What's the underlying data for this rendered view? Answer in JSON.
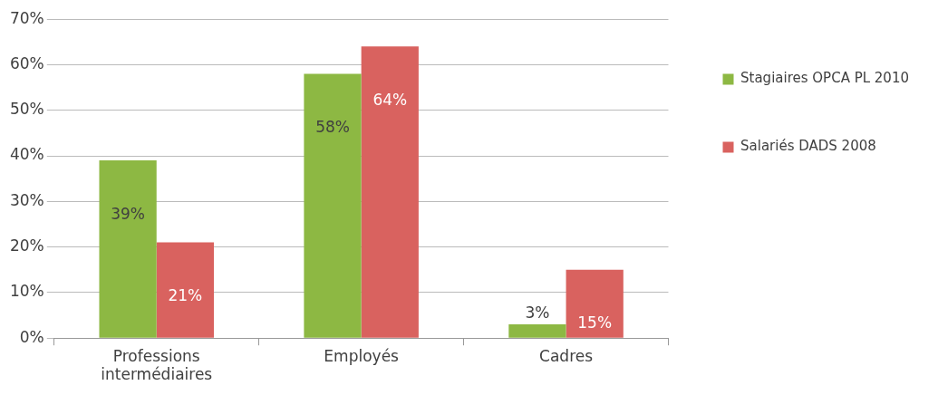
{
  "chart_data": {
    "type": "bar",
    "categories": [
      "Professions intermédiaires",
      "Employés",
      "Cadres"
    ],
    "series": [
      {
        "name": "Stagiaires OPCA PL 2010",
        "color": "#8db843",
        "values": [
          39,
          58,
          3
        ],
        "value_labels": [
          "39%",
          "58%",
          "3%"
        ]
      },
      {
        "name": "Salariés DADS 2008",
        "color": "#d9625f",
        "values": [
          21,
          64,
          15
        ],
        "value_labels": [
          "21%",
          "64%",
          "15%"
        ]
      }
    ],
    "ylim": [
      0,
      70
    ],
    "yticks": [
      {
        "value": 0,
        "label": "0%"
      },
      {
        "value": 10,
        "label": "10%"
      },
      {
        "value": 20,
        "label": "20%"
      },
      {
        "value": 30,
        "label": "30%"
      },
      {
        "value": 40,
        "label": "40%"
      },
      {
        "value": 50,
        "label": "50%"
      },
      {
        "value": 60,
        "label": "60%"
      },
      {
        "value": 70,
        "label": "70%"
      }
    ],
    "grid": "y",
    "legend": "right"
  }
}
